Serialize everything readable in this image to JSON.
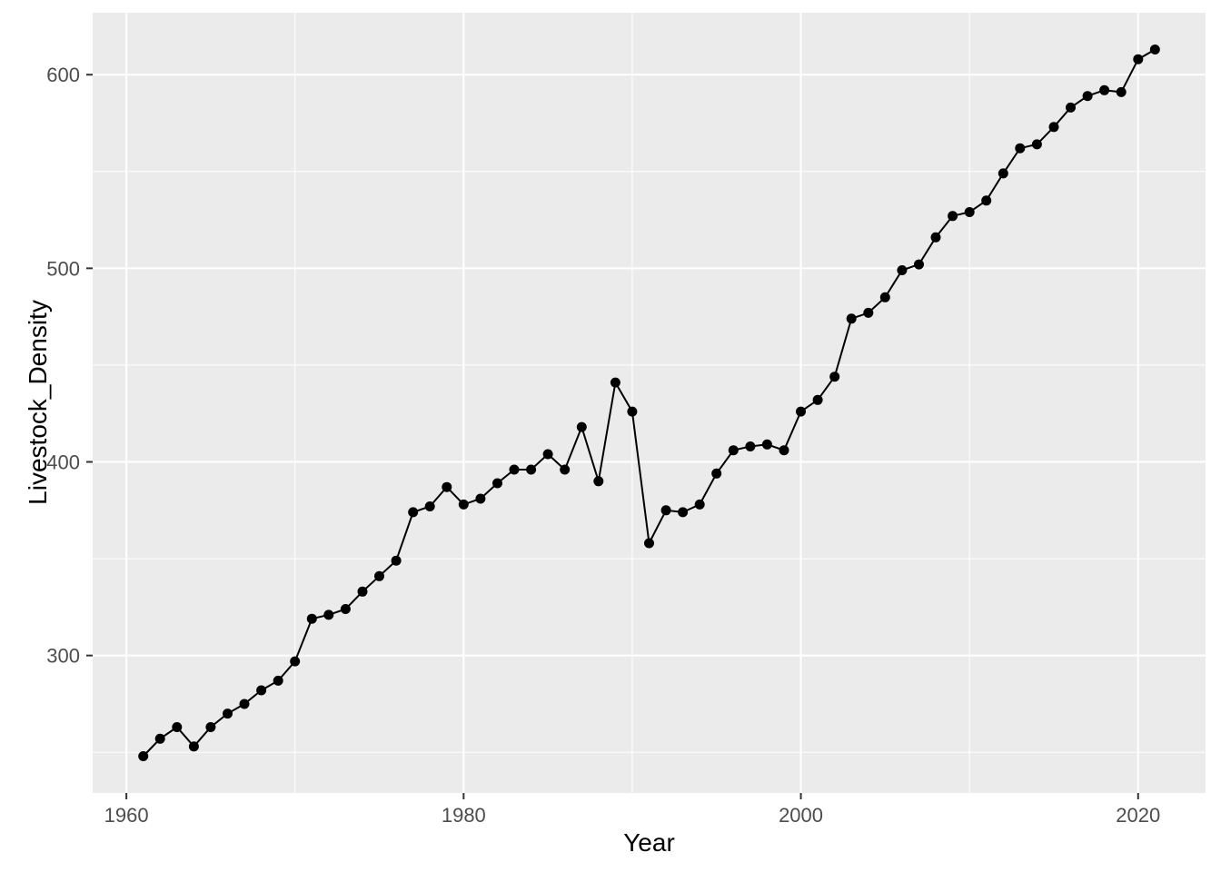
{
  "chart_data": {
    "type": "line",
    "title": "",
    "xlabel": "Year",
    "ylabel": "Livestock_Density",
    "legend": "none",
    "grid": true,
    "marker": "point",
    "x": [
      1961,
      1962,
      1963,
      1964,
      1965,
      1966,
      1967,
      1968,
      1969,
      1970,
      1971,
      1972,
      1973,
      1974,
      1975,
      1976,
      1977,
      1978,
      1979,
      1980,
      1981,
      1982,
      1983,
      1984,
      1985,
      1986,
      1987,
      1988,
      1989,
      1990,
      1991,
      1992,
      1993,
      1994,
      1995,
      1996,
      1997,
      1998,
      1999,
      2000,
      2001,
      2002,
      2003,
      2004,
      2005,
      2006,
      2007,
      2008,
      2009,
      2010,
      2011,
      2012,
      2013,
      2014,
      2015,
      2016,
      2017,
      2018,
      2019,
      2020,
      2021
    ],
    "series": [
      {
        "name": "Livestock_Density",
        "values": [
          248,
          257,
          263,
          253,
          263,
          270,
          275,
          282,
          287,
          297,
          319,
          321,
          324,
          333,
          341,
          349,
          374,
          377,
          387,
          378,
          381,
          389,
          396,
          396,
          404,
          396,
          418,
          390,
          441,
          426,
          358,
          375,
          374,
          378,
          394,
          406,
          408,
          409,
          406,
          426,
          432,
          444,
          474,
          477,
          485,
          499,
          502,
          516,
          527,
          529,
          535,
          549,
          562,
          564,
          573,
          583,
          589,
          592,
          591,
          608,
          613
        ]
      }
    ],
    "xlim": [
      1958,
      2024
    ],
    "ylim": [
      229,
      632
    ],
    "x_major_ticks": [
      1960,
      1980,
      2000,
      2020
    ],
    "x_minor_ticks": [
      1970,
      1990,
      2010
    ],
    "y_major_ticks": [
      300,
      400,
      500,
      600
    ],
    "y_minor_ticks": [
      250,
      350,
      450,
      550
    ],
    "style": {
      "panel_bg": "#EBEBEB",
      "grid_color": "#FFFFFF",
      "line_color": "#000000",
      "point_color": "#000000",
      "tick_label_color": "#4D4D4D",
      "tick_color": "#333333",
      "axis_title_color": "#000000"
    }
  }
}
